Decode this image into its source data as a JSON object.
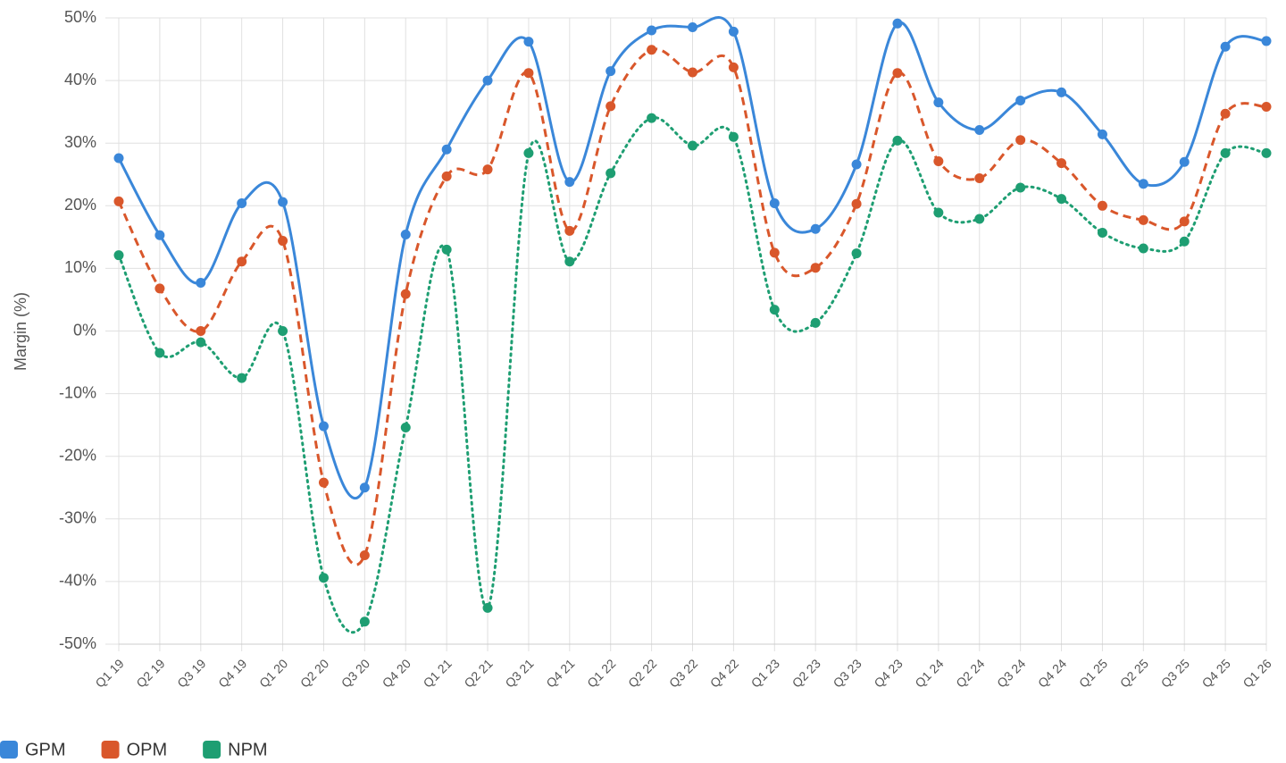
{
  "chart_data": {
    "type": "line",
    "y_label": "Margin (%)",
    "categories": [
      "Q1 19",
      "Q2 19",
      "Q3 19",
      "Q4 19",
      "Q1 20",
      "Q2 20",
      "Q3 20",
      "Q4 20",
      "Q1 21",
      "Q2 21",
      "Q3 21",
      "Q4 21",
      "Q1 22",
      "Q2 22",
      "Q3 22",
      "Q4 22",
      "Q1 23",
      "Q2 23",
      "Q3 23",
      "Q4 23",
      "Q1 24",
      "Q2 24",
      "Q3 24",
      "Q4 24",
      "Q1 25",
      "Q2 25",
      "Q3 25",
      "Q4 25",
      "Q1 26"
    ],
    "series": [
      {
        "name": "GPM",
        "color": "#3a87d9",
        "dash": "solid",
        "values": [
          27.6,
          15.3,
          7.7,
          20.4,
          20.6,
          -15.2,
          -25.0,
          15.4,
          29.0,
          40.0,
          46.2,
          23.8,
          41.5,
          48.0,
          48.5,
          47.8,
          20.4,
          16.3,
          26.6,
          49.1,
          36.5,
          32.1,
          36.8,
          38.1,
          31.4,
          23.5,
          27.0,
          45.4,
          46.3
        ]
      },
      {
        "name": "OPM",
        "color": "#d9572b",
        "dash": "dashed",
        "values": [
          20.7,
          6.8,
          0.0,
          11.1,
          14.4,
          -24.2,
          -35.8,
          5.9,
          24.7,
          25.8,
          41.2,
          16.0,
          35.9,
          44.9,
          41.3,
          42.1,
          12.5,
          10.1,
          20.3,
          41.2,
          27.1,
          24.4,
          30.5,
          26.8,
          20.0,
          17.7,
          17.5,
          34.7,
          35.8
        ]
      },
      {
        "name": "NPM",
        "color": "#1e9e72",
        "dash": "dotted",
        "values": [
          12.1,
          -3.5,
          -1.8,
          -7.5,
          0.0,
          -39.4,
          -46.4,
          -15.4,
          13.0,
          -44.2,
          28.4,
          11.1,
          25.2,
          34.0,
          29.6,
          31.0,
          3.4,
          1.3,
          12.4,
          30.4,
          18.9,
          17.9,
          22.9,
          21.1,
          15.7,
          13.2,
          14.3,
          28.4,
          28.4
        ]
      }
    ],
    "ylim": [
      -50,
      50
    ],
    "yticks": [
      {
        "value": -50,
        "label": "-50%"
      },
      {
        "value": -40,
        "label": "-40%"
      },
      {
        "value": -30,
        "label": "-30%"
      },
      {
        "value": -20,
        "label": "-20%"
      },
      {
        "value": -10,
        "label": "-10%"
      },
      {
        "value": 0,
        "label": "0%"
      },
      {
        "value": 10,
        "label": "10%"
      },
      {
        "value": 20,
        "label": "20%"
      },
      {
        "value": 30,
        "label": "30%"
      },
      {
        "value": 40,
        "label": "40%"
      },
      {
        "value": 50,
        "label": "50%"
      }
    ],
    "grid": true,
    "legend": "bottom-left"
  }
}
